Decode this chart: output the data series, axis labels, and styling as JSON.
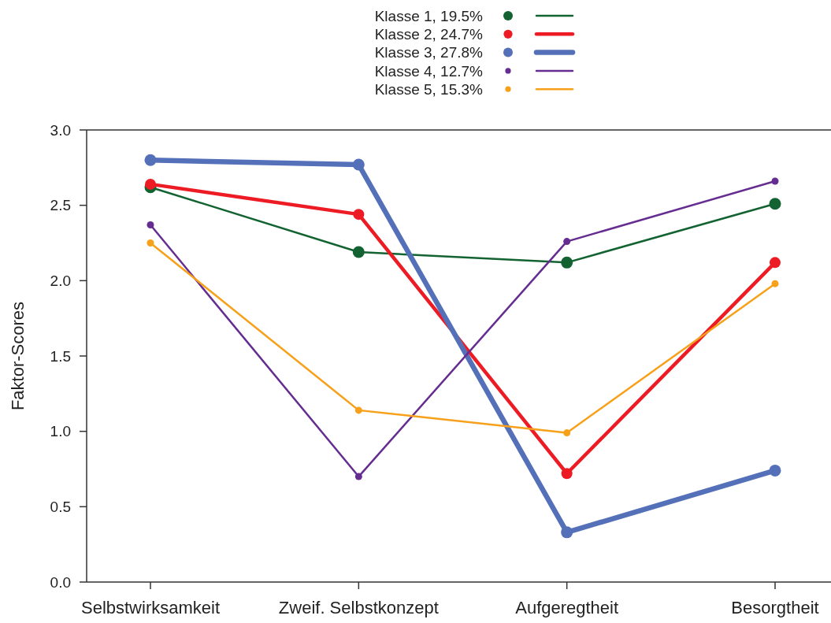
{
  "chart_data": {
    "type": "line",
    "ylabel": "Faktor-Scores",
    "categories": [
      "Selbstwirksamkeit",
      "Zweif. Selbstkonzept",
      "Aufgeregtheit",
      "Besorgtheit"
    ],
    "series": [
      {
        "name": "Klasse 1, 19.5%",
        "color": "#136332",
        "values": [
          2.62,
          2.19,
          2.12,
          2.51
        ]
      },
      {
        "name": "Klasse 2, 24.7%",
        "color": "#ed1c24",
        "values": [
          2.64,
          2.44,
          0.72,
          2.12
        ]
      },
      {
        "name": "Klasse 3, 27.8%",
        "color": "#5470b8",
        "values": [
          2.8,
          2.77,
          0.33,
          0.74
        ]
      },
      {
        "name": "Klasse 4, 12.7%",
        "color": "#662d91",
        "values": [
          2.37,
          0.7,
          2.26,
          2.66
        ]
      },
      {
        "name": "Klasse 5, 15.3%",
        "color": "#f7a01a",
        "values": [
          2.25,
          1.14,
          0.99,
          1.98
        ]
      }
    ],
    "ylim": [
      0,
      3
    ],
    "yticks": [
      {
        "value": 0,
        "label": "0.0"
      },
      0.5,
      {
        "value": 1,
        "label": "1.0"
      },
      1.5,
      {
        "value": 2,
        "label": "2.0"
      },
      2.5,
      {
        "value": 3,
        "label": "3.0"
      }
    ],
    "legend": "top",
    "marker": "circle",
    "grid": false
  }
}
